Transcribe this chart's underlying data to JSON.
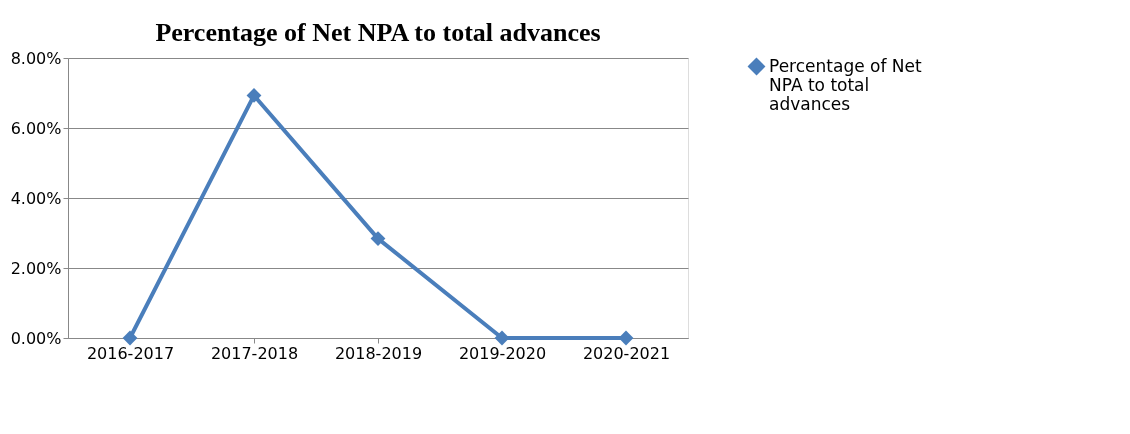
{
  "chart_data": {
    "type": "line",
    "title": "Percentage of Net NPA to total advances",
    "categories": [
      "2016-2017",
      "2017-2018",
      "2018-2019",
      "2019-2020",
      "2020-2021"
    ],
    "series": [
      {
        "name": "Percentage of Net NPA to total advances",
        "color": "#4a7ebb",
        "values": [
          0,
          6.93,
          2.84,
          0,
          0
        ]
      }
    ],
    "ylim": [
      0,
      8
    ],
    "yticks": [
      {
        "value": 0,
        "label": "0.00%"
      },
      {
        "value": 2,
        "label": "2.00%"
      },
      {
        "value": 4,
        "label": "4.00%"
      },
      {
        "value": 6,
        "label": "6.00%"
      },
      {
        "value": 8,
        "label": "8.00%"
      }
    ],
    "grid": "y",
    "legend": "right",
    "marker": "diamond",
    "line_style": "solid"
  }
}
